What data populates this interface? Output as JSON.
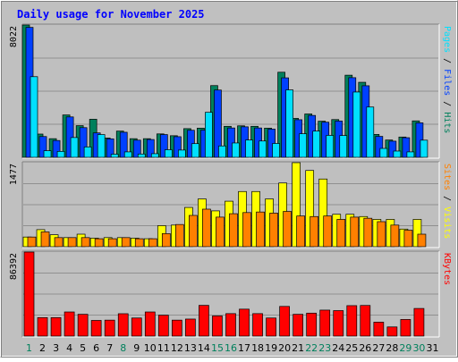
{
  "chart_data": {
    "type": "bar",
    "title": "Daily usage for November 2025",
    "categories": [
      "1",
      "2",
      "3",
      "4",
      "5",
      "6",
      "7",
      "8",
      "9",
      "10",
      "11",
      "12",
      "13",
      "14",
      "15",
      "16",
      "17",
      "18",
      "19",
      "20",
      "21",
      "22",
      "23",
      "24",
      "25",
      "26",
      "27",
      "28",
      "29",
      "30",
      "31"
    ],
    "weekend_days": [
      "1",
      "8",
      "15",
      "16",
      "22",
      "23",
      "29",
      "30"
    ],
    "colors": {
      "background": "#c0c0c0",
      "panel": "#bfbfbf",
      "title": "#0000ff",
      "hits": "#00805c",
      "files": "#0040ff",
      "pages": "#00e0ff",
      "visits": "#ffff00",
      "sites": "#ff8000",
      "kbytes": "#ff0000",
      "weekend_label": "#00805c",
      "weekday_label": "#000000"
    },
    "panels": [
      {
        "max_label": "8022",
        "ylim": [
          0,
          8022
        ],
        "right_label": [
          {
            "text": "Pages",
            "color": "#00e0ff"
          },
          {
            "text": " / ",
            "color": "#000000"
          },
          {
            "text": "Files",
            "color": "#0040ff"
          },
          {
            "text": " / ",
            "color": "#000000"
          },
          {
            "text": "Hits",
            "color": "#00805c"
          }
        ],
        "series": [
          {
            "name": "Hits",
            "color": "#00805c",
            "values": [
              8022,
              1410,
              1130,
              2570,
              1920,
              2310,
              1170,
              1590,
              1130,
              1130,
              1420,
              1310,
              1740,
              1770,
              4350,
              1880,
              1910,
              1880,
              1770,
              5160,
              2360,
              2630,
              2190,
              2290,
              4980,
              4550,
              1390,
              1050,
              1230,
              2210,
              0
            ]
          },
          {
            "name": "Files",
            "color": "#0040ff",
            "values": [
              7880,
              1260,
              1020,
              2450,
              1800,
              1480,
              1120,
              1520,
              1040,
              1080,
              1380,
              1250,
              1640,
              1650,
              4080,
              1780,
              1850,
              1780,
              1710,
              4820,
              2280,
              2540,
              2130,
              2200,
              4830,
              4340,
              1270,
              980,
              1190,
              2090,
              0
            ]
          },
          {
            "name": "Pages",
            "color": "#00e0ff",
            "values": [
              4890,
              400,
              360,
              1200,
              630,
              1380,
              190,
              330,
              200,
              220,
              460,
              440,
              830,
              2730,
              690,
              870,
              1050,
              990,
              840,
              4090,
              1430,
              1590,
              1330,
              1320,
              3960,
              3050,
              540,
              380,
              330,
              1040,
              0
            ]
          }
        ]
      },
      {
        "max_label": "1477",
        "ylim": [
          0,
          1477
        ],
        "right_label": [
          {
            "text": "Sites",
            "color": "#ff8000"
          },
          {
            "text": " / ",
            "color": "#000000"
          },
          {
            "text": "Visits",
            "color": "#ffff00"
          }
        ],
        "series": [
          {
            "name": "Visits",
            "color": "#ffff00",
            "values": [
              170,
              300,
              210,
              160,
              220,
              150,
              160,
              160,
              150,
              140,
              370,
              380,
              690,
              840,
              630,
              800,
              970,
              970,
              840,
              1120,
              1477,
              1340,
              1190,
              570,
              570,
              530,
              480,
              480,
              310,
              480,
              0
            ]
          },
          {
            "name": "Sites",
            "color": "#ff8000",
            "values": [
              170,
              260,
              160,
              160,
              160,
              140,
              140,
              160,
              140,
              140,
              230,
              390,
              550,
              660,
              520,
              580,
              600,
              610,
              590,
              620,
              540,
              530,
              540,
              480,
              520,
              500,
              440,
              380,
              290,
              220,
              0
            ]
          }
        ]
      },
      {
        "max_label": "86392",
        "ylim": [
          0,
          86392
        ],
        "right_label": [
          {
            "text": "KBytes",
            "color": "#ff0000"
          }
        ],
        "series": [
          {
            "name": "KBytes",
            "color": "#ff0000",
            "values": [
              86392,
              19000,
              19000,
              24800,
              22400,
              16100,
              16400,
              23000,
              18600,
              24800,
              21500,
              16400,
              17500,
              31600,
              20700,
              23100,
              27700,
              23100,
              18600,
              30500,
              22400,
              23600,
              26700,
              26200,
              31300,
              31500,
              14300,
              9400,
              17100,
              28400,
              0
            ]
          }
        ]
      }
    ]
  }
}
